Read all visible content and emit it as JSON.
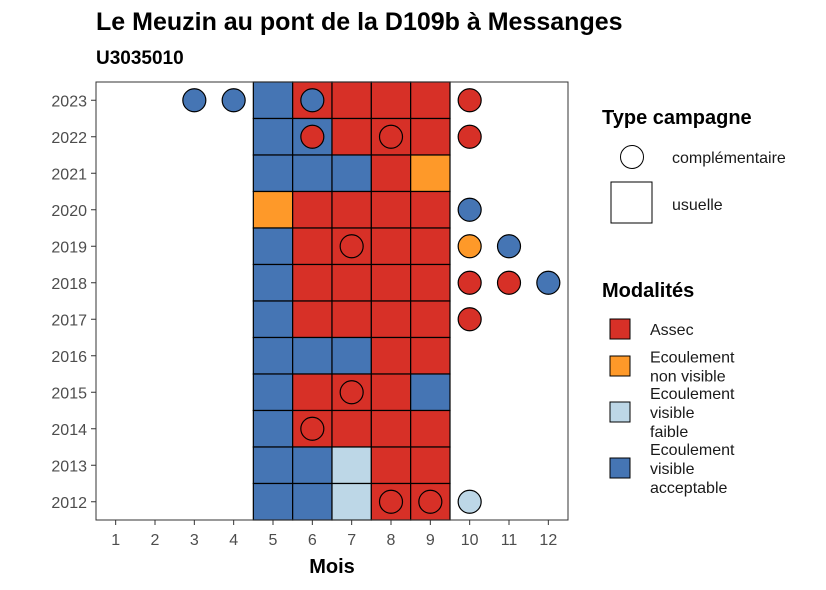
{
  "colors": {
    "Assec": "#d73027",
    "Ecoulement non visible": "#fe9929",
    "Ecoulement visible faible": "#bdd7e7",
    "Ecoulement visible acceptable": "#4575b4"
  },
  "chart_data": {
    "type": "heatmap",
    "title": "Le Meuzin au pont de la D109b à Messanges",
    "subtitle": "U3035010",
    "xlabel": "Mois",
    "ylabel": "",
    "x_ticks": [
      "1",
      "2",
      "3",
      "4",
      "5",
      "6",
      "7",
      "8",
      "9",
      "10",
      "11",
      "12"
    ],
    "y_ticks": [
      "2012",
      "2013",
      "2014",
      "2015",
      "2016",
      "2017",
      "2018",
      "2019",
      "2020",
      "2021",
      "2022",
      "2023"
    ],
    "xlim": [
      0.5,
      12.5
    ],
    "grid": false,
    "legend_position": "right",
    "legend_campaign": {
      "title": "Type campagne",
      "items": [
        {
          "shape": "circle",
          "label": "complémentaire"
        },
        {
          "shape": "square",
          "label": "usuelle"
        }
      ]
    },
    "legend_modalities": {
      "title": "Modalités",
      "items": [
        {
          "key": "Assec",
          "lines": [
            "Assec"
          ]
        },
        {
          "key": "Ecoulement non visible",
          "lines": [
            "Ecoulement",
            "non visible"
          ]
        },
        {
          "key": "Ecoulement visible faible",
          "lines": [
            "Ecoulement",
            "visible",
            "faible"
          ]
        },
        {
          "key": "Ecoulement visible acceptable",
          "lines": [
            "Ecoulement",
            "visible",
            "acceptable"
          ]
        }
      ]
    },
    "squares": [
      {
        "year": 2023,
        "month": 5,
        "modalite": "Ecoulement visible acceptable"
      },
      {
        "year": 2023,
        "month": 6,
        "modalite": "Assec"
      },
      {
        "year": 2023,
        "month": 7,
        "modalite": "Assec"
      },
      {
        "year": 2023,
        "month": 8,
        "modalite": "Assec"
      },
      {
        "year": 2023,
        "month": 9,
        "modalite": "Assec"
      },
      {
        "year": 2022,
        "month": 5,
        "modalite": "Ecoulement visible acceptable"
      },
      {
        "year": 2022,
        "month": 6,
        "modalite": "Ecoulement visible acceptable"
      },
      {
        "year": 2022,
        "month": 7,
        "modalite": "Assec"
      },
      {
        "year": 2022,
        "month": 8,
        "modalite": "Assec"
      },
      {
        "year": 2022,
        "month": 9,
        "modalite": "Assec"
      },
      {
        "year": 2021,
        "month": 5,
        "modalite": "Ecoulement visible acceptable"
      },
      {
        "year": 2021,
        "month": 6,
        "modalite": "Ecoulement visible acceptable"
      },
      {
        "year": 2021,
        "month": 7,
        "modalite": "Ecoulement visible acceptable"
      },
      {
        "year": 2021,
        "month": 8,
        "modalite": "Assec"
      },
      {
        "year": 2021,
        "month": 9,
        "modalite": "Ecoulement non visible"
      },
      {
        "year": 2020,
        "month": 5,
        "modalite": "Ecoulement non visible"
      },
      {
        "year": 2020,
        "month": 6,
        "modalite": "Assec"
      },
      {
        "year": 2020,
        "month": 7,
        "modalite": "Assec"
      },
      {
        "year": 2020,
        "month": 8,
        "modalite": "Assec"
      },
      {
        "year": 2020,
        "month": 9,
        "modalite": "Assec"
      },
      {
        "year": 2019,
        "month": 5,
        "modalite": "Ecoulement visible acceptable"
      },
      {
        "year": 2019,
        "month": 6,
        "modalite": "Assec"
      },
      {
        "year": 2019,
        "month": 7,
        "modalite": "Assec"
      },
      {
        "year": 2019,
        "month": 8,
        "modalite": "Assec"
      },
      {
        "year": 2019,
        "month": 9,
        "modalite": "Assec"
      },
      {
        "year": 2018,
        "month": 5,
        "modalite": "Ecoulement visible acceptable"
      },
      {
        "year": 2018,
        "month": 6,
        "modalite": "Assec"
      },
      {
        "year": 2018,
        "month": 7,
        "modalite": "Assec"
      },
      {
        "year": 2018,
        "month": 8,
        "modalite": "Assec"
      },
      {
        "year": 2018,
        "month": 9,
        "modalite": "Assec"
      },
      {
        "year": 2017,
        "month": 5,
        "modalite": "Ecoulement visible acceptable"
      },
      {
        "year": 2017,
        "month": 6,
        "modalite": "Assec"
      },
      {
        "year": 2017,
        "month": 7,
        "modalite": "Assec"
      },
      {
        "year": 2017,
        "month": 8,
        "modalite": "Assec"
      },
      {
        "year": 2017,
        "month": 9,
        "modalite": "Assec"
      },
      {
        "year": 2016,
        "month": 5,
        "modalite": "Ecoulement visible acceptable"
      },
      {
        "year": 2016,
        "month": 6,
        "modalite": "Ecoulement visible acceptable"
      },
      {
        "year": 2016,
        "month": 7,
        "modalite": "Ecoulement visible acceptable"
      },
      {
        "year": 2016,
        "month": 8,
        "modalite": "Assec"
      },
      {
        "year": 2016,
        "month": 9,
        "modalite": "Assec"
      },
      {
        "year": 2015,
        "month": 5,
        "modalite": "Ecoulement visible acceptable"
      },
      {
        "year": 2015,
        "month": 6,
        "modalite": "Assec"
      },
      {
        "year": 2015,
        "month": 7,
        "modalite": "Assec"
      },
      {
        "year": 2015,
        "month": 8,
        "modalite": "Assec"
      },
      {
        "year": 2015,
        "month": 9,
        "modalite": "Ecoulement visible acceptable"
      },
      {
        "year": 2014,
        "month": 5,
        "modalite": "Ecoulement visible acceptable"
      },
      {
        "year": 2014,
        "month": 6,
        "modalite": "Assec"
      },
      {
        "year": 2014,
        "month": 7,
        "modalite": "Assec"
      },
      {
        "year": 2014,
        "month": 8,
        "modalite": "Assec"
      },
      {
        "year": 2014,
        "month": 9,
        "modalite": "Assec"
      },
      {
        "year": 2013,
        "month": 5,
        "modalite": "Ecoulement visible acceptable"
      },
      {
        "year": 2013,
        "month": 6,
        "modalite": "Ecoulement visible acceptable"
      },
      {
        "year": 2013,
        "month": 7,
        "modalite": "Ecoulement visible faible"
      },
      {
        "year": 2013,
        "month": 8,
        "modalite": "Assec"
      },
      {
        "year": 2013,
        "month": 9,
        "modalite": "Assec"
      },
      {
        "year": 2012,
        "month": 5,
        "modalite": "Ecoulement visible acceptable"
      },
      {
        "year": 2012,
        "month": 6,
        "modalite": "Ecoulement visible acceptable"
      },
      {
        "year": 2012,
        "month": 7,
        "modalite": "Ecoulement visible faible"
      },
      {
        "year": 2012,
        "month": 8,
        "modalite": "Assec"
      },
      {
        "year": 2012,
        "month": 9,
        "modalite": "Assec"
      }
    ],
    "circles": [
      {
        "year": 2023,
        "month": 3,
        "modalite": "Ecoulement visible acceptable"
      },
      {
        "year": 2023,
        "month": 4,
        "modalite": "Ecoulement visible acceptable"
      },
      {
        "year": 2023,
        "month": 6,
        "modalite": "Ecoulement visible acceptable"
      },
      {
        "year": 2023,
        "month": 10,
        "modalite": "Assec"
      },
      {
        "year": 2022,
        "month": 6,
        "modalite": "Assec"
      },
      {
        "year": 2022,
        "month": 8,
        "modalite": "Assec"
      },
      {
        "year": 2022,
        "month": 10,
        "modalite": "Assec"
      },
      {
        "year": 2020,
        "month": 10,
        "modalite": "Ecoulement visible acceptable"
      },
      {
        "year": 2019,
        "month": 7,
        "modalite": "Assec"
      },
      {
        "year": 2019,
        "month": 10,
        "modalite": "Ecoulement non visible"
      },
      {
        "year": 2019,
        "month": 11,
        "modalite": "Ecoulement visible acceptable"
      },
      {
        "year": 2018,
        "month": 10,
        "modalite": "Assec"
      },
      {
        "year": 2018,
        "month": 11,
        "modalite": "Assec"
      },
      {
        "year": 2018,
        "month": 12,
        "modalite": "Ecoulement visible acceptable"
      },
      {
        "year": 2017,
        "month": 10,
        "modalite": "Assec"
      },
      {
        "year": 2015,
        "month": 7,
        "modalite": "Assec"
      },
      {
        "year": 2014,
        "month": 6,
        "modalite": "Assec"
      },
      {
        "year": 2012,
        "month": 8,
        "modalite": "Assec"
      },
      {
        "year": 2012,
        "month": 9,
        "modalite": "Assec"
      },
      {
        "year": 2012,
        "month": 10,
        "modalite": "Ecoulement visible faible"
      }
    ]
  }
}
